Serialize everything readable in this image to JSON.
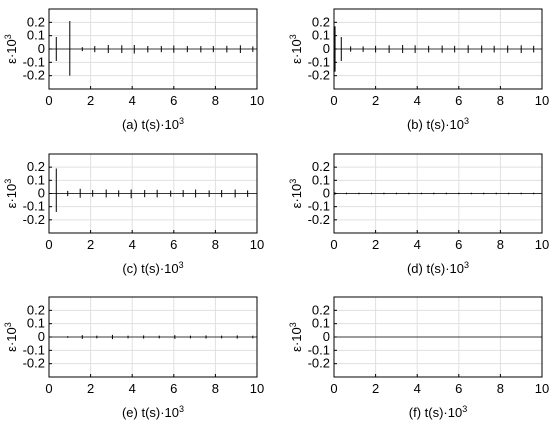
{
  "chart_data": [
    {
      "type": "line",
      "panel": "a",
      "caption_letter": "(a)",
      "xlabel": "t(s)·10",
      "xlabel_sup": "3",
      "ylabel": "ε·10",
      "ylabel_sup": "3",
      "xlim": [
        0,
        10
      ],
      "ylim": [
        -0.3,
        0.3
      ],
      "xticks": [
        "0",
        "2",
        "4",
        "6",
        "8",
        "10"
      ],
      "yticks": [
        "-0.2",
        "-0.1",
        "0",
        "0.1",
        "0.2"
      ],
      "grid": true,
      "spikes": [
        {
          "t": 0.35,
          "max": 0.09,
          "min": -0.09
        },
        {
          "t": 1.0,
          "max": 0.21,
          "min": -0.2
        },
        {
          "t": 1.6,
          "max": 0.014,
          "min": -0.016
        },
        {
          "t": 2.2,
          "max": 0.022,
          "min": -0.024
        },
        {
          "t": 2.85,
          "max": 0.03,
          "min": -0.03
        },
        {
          "t": 3.5,
          "max": 0.028,
          "min": -0.03
        },
        {
          "t": 4.1,
          "max": 0.03,
          "min": -0.034
        },
        {
          "t": 4.75,
          "max": 0.022,
          "min": -0.026
        },
        {
          "t": 5.4,
          "max": 0.022,
          "min": -0.024
        },
        {
          "t": 6.0,
          "max": 0.026,
          "min": -0.028
        },
        {
          "t": 6.65,
          "max": 0.022,
          "min": -0.024
        },
        {
          "t": 7.3,
          "max": 0.022,
          "min": -0.026
        },
        {
          "t": 7.9,
          "max": 0.022,
          "min": -0.024
        },
        {
          "t": 8.55,
          "max": 0.024,
          "min": -0.026
        },
        {
          "t": 9.2,
          "max": 0.028,
          "min": -0.03
        },
        {
          "t": 9.8,
          "max": 0.02,
          "min": -0.022
        }
      ]
    },
    {
      "type": "line",
      "panel": "b",
      "caption_letter": "(b)",
      "xlabel": "t(s)·10",
      "xlabel_sup": "3",
      "ylabel": "ε·10",
      "ylabel_sup": "3",
      "xlim": [
        0,
        10
      ],
      "ylim": [
        -0.3,
        0.3
      ],
      "xticks": [
        "0",
        "2",
        "4",
        "6",
        "8",
        "10"
      ],
      "yticks": [
        "-0.2",
        "-0.1",
        "0",
        "0.1",
        "0.2"
      ],
      "grid": true,
      "spikes": [
        {
          "t": 0.05,
          "max": 0.17,
          "min": -0.17
        },
        {
          "t": 0.35,
          "max": 0.09,
          "min": -0.09
        },
        {
          "t": 0.8,
          "max": 0.02,
          "min": -0.02
        },
        {
          "t": 1.4,
          "max": 0.02,
          "min": -0.022
        },
        {
          "t": 2.0,
          "max": 0.024,
          "min": -0.026
        },
        {
          "t": 2.65,
          "max": 0.028,
          "min": -0.03
        },
        {
          "t": 3.3,
          "max": 0.03,
          "min": -0.03
        },
        {
          "t": 3.9,
          "max": 0.028,
          "min": -0.03
        },
        {
          "t": 4.55,
          "max": 0.024,
          "min": -0.026
        },
        {
          "t": 5.2,
          "max": 0.026,
          "min": -0.028
        },
        {
          "t": 5.8,
          "max": 0.024,
          "min": -0.026
        },
        {
          "t": 6.45,
          "max": 0.028,
          "min": -0.03
        },
        {
          "t": 7.1,
          "max": 0.026,
          "min": -0.028
        },
        {
          "t": 7.7,
          "max": 0.024,
          "min": -0.026
        },
        {
          "t": 8.35,
          "max": 0.026,
          "min": -0.028
        },
        {
          "t": 9.0,
          "max": 0.028,
          "min": -0.03
        },
        {
          "t": 9.6,
          "max": 0.024,
          "min": -0.026
        }
      ]
    },
    {
      "type": "line",
      "panel": "c",
      "caption_letter": "(c)",
      "xlabel": "t(s)·10",
      "xlabel_sup": "3",
      "ylabel": "ε·10",
      "ylabel_sup": "3",
      "xlim": [
        0,
        10
      ],
      "ylim": [
        -0.3,
        0.3
      ],
      "xticks": [
        "0",
        "2",
        "4",
        "6",
        "8",
        "10"
      ],
      "yticks": [
        "-0.2",
        "-0.1",
        "0",
        "0.1",
        "0.2"
      ],
      "grid": true,
      "spikes": [
        {
          "t": 0.35,
          "max": 0.19,
          "min": -0.14
        },
        {
          "t": 0.9,
          "max": 0.02,
          "min": -0.02
        },
        {
          "t": 1.5,
          "max": 0.036,
          "min": -0.032
        },
        {
          "t": 2.1,
          "max": 0.026,
          "min": -0.024
        },
        {
          "t": 2.75,
          "max": 0.03,
          "min": -0.03
        },
        {
          "t": 3.35,
          "max": 0.024,
          "min": -0.024
        },
        {
          "t": 3.95,
          "max": 0.03,
          "min": -0.036
        },
        {
          "t": 4.6,
          "max": 0.026,
          "min": -0.028
        },
        {
          "t": 5.2,
          "max": 0.028,
          "min": -0.03
        },
        {
          "t": 5.85,
          "max": 0.022,
          "min": -0.024
        },
        {
          "t": 6.45,
          "max": 0.026,
          "min": -0.026
        },
        {
          "t": 7.05,
          "max": 0.03,
          "min": -0.03
        },
        {
          "t": 7.7,
          "max": 0.024,
          "min": -0.026
        },
        {
          "t": 8.3,
          "max": 0.026,
          "min": -0.028
        },
        {
          "t": 8.95,
          "max": 0.03,
          "min": -0.03
        },
        {
          "t": 9.55,
          "max": 0.024,
          "min": -0.026
        }
      ]
    },
    {
      "type": "line",
      "panel": "d",
      "caption_letter": "(d)",
      "xlabel": "t(s)·10",
      "xlabel_sup": "3",
      "ylabel": "ε·10",
      "ylabel_sup": "3",
      "xlim": [
        0,
        10
      ],
      "ylim": [
        -0.3,
        0.3
      ],
      "xticks": [
        "0",
        "2",
        "4",
        "6",
        "8",
        "10"
      ],
      "yticks": [
        "-0.2",
        "-0.1",
        "0",
        "0.1",
        "0.2"
      ],
      "grid": true,
      "spikes": [
        {
          "t": 0.05,
          "max": 0.008,
          "min": -0.008
        },
        {
          "t": 0.6,
          "max": 0.006,
          "min": -0.006
        },
        {
          "t": 1.2,
          "max": 0.006,
          "min": -0.006
        },
        {
          "t": 1.8,
          "max": 0.006,
          "min": -0.006
        },
        {
          "t": 2.4,
          "max": 0.006,
          "min": -0.006
        },
        {
          "t": 3.0,
          "max": 0.006,
          "min": -0.006
        },
        {
          "t": 3.6,
          "max": 0.006,
          "min": -0.006
        },
        {
          "t": 4.2,
          "max": 0.006,
          "min": -0.006
        },
        {
          "t": 4.8,
          "max": 0.006,
          "min": -0.006
        },
        {
          "t": 5.4,
          "max": 0.006,
          "min": -0.006
        },
        {
          "t": 6.0,
          "max": 0.006,
          "min": -0.006
        },
        {
          "t": 6.6,
          "max": 0.006,
          "min": -0.006
        },
        {
          "t": 7.2,
          "max": 0.006,
          "min": -0.006
        },
        {
          "t": 7.8,
          "max": 0.006,
          "min": -0.006
        },
        {
          "t": 8.4,
          "max": 0.006,
          "min": -0.006
        },
        {
          "t": 9.0,
          "max": 0.006,
          "min": -0.006
        },
        {
          "t": 9.6,
          "max": 0.006,
          "min": -0.006
        }
      ]
    },
    {
      "type": "line",
      "panel": "e",
      "caption_letter": "(e)",
      "xlabel": "t(s)·10",
      "xlabel_sup": "3",
      "ylabel": "ε·10",
      "ylabel_sup": "3",
      "xlim": [
        0,
        10
      ],
      "ylim": [
        -0.3,
        0.3
      ],
      "xticks": [
        "0",
        "2",
        "4",
        "6",
        "8",
        "10"
      ],
      "yticks": [
        "-0.2",
        "-0.1",
        "0",
        "0.1",
        "0.2"
      ],
      "grid": true,
      "spikes": [
        {
          "t": 0.9,
          "max": 0.006,
          "min": -0.006
        },
        {
          "t": 1.6,
          "max": 0.014,
          "min": -0.014
        },
        {
          "t": 2.3,
          "max": 0.01,
          "min": -0.01
        },
        {
          "t": 3.05,
          "max": 0.016,
          "min": -0.016
        },
        {
          "t": 3.8,
          "max": 0.01,
          "min": -0.01
        },
        {
          "t": 4.55,
          "max": 0.012,
          "min": -0.012
        },
        {
          "t": 5.3,
          "max": 0.01,
          "min": -0.01
        },
        {
          "t": 6.05,
          "max": 0.014,
          "min": -0.014
        },
        {
          "t": 6.8,
          "max": 0.01,
          "min": -0.01
        },
        {
          "t": 7.55,
          "max": 0.012,
          "min": -0.012
        },
        {
          "t": 8.3,
          "max": 0.01,
          "min": -0.01
        },
        {
          "t": 9.05,
          "max": 0.012,
          "min": -0.012
        },
        {
          "t": 9.8,
          "max": 0.01,
          "min": -0.01
        }
      ]
    },
    {
      "type": "line",
      "panel": "f",
      "caption_letter": "(f)",
      "xlabel": "t(s)·10",
      "xlabel_sup": "3",
      "ylabel": "ε·10",
      "ylabel_sup": "3",
      "xlim": [
        0,
        10
      ],
      "ylim": [
        -0.3,
        0.3
      ],
      "xticks": [
        "0",
        "2",
        "4",
        "6",
        "8",
        "10"
      ],
      "yticks": [
        "-0.2",
        "-0.1",
        "0",
        "0.1",
        "0.2"
      ],
      "grid": true,
      "spikes": []
    }
  ],
  "colors": {
    "line": "#000000",
    "grid": "#e0e0e0",
    "frame": "#000000"
  }
}
